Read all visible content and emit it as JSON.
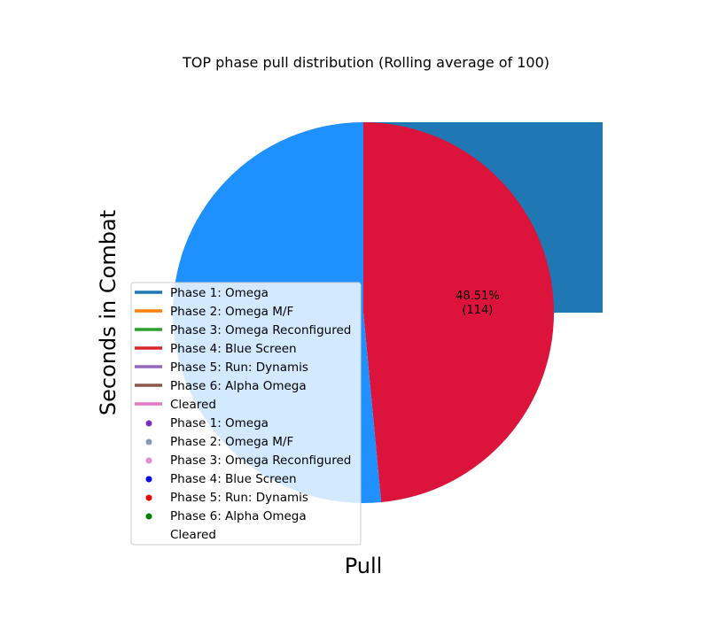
{
  "chart_data": {
    "type": "pie",
    "title": "TOP phase pull distribution (Rolling average of 100)",
    "xlabel": "Pull",
    "ylabel": "Seconds in Combat",
    "slices": [
      {
        "name": "",
        "value": 48.51,
        "count": 114,
        "color": "#dc143c",
        "pct_label": "48.51%",
        "count_label": "(114)"
      },
      {
        "name": "",
        "value": 51.49,
        "color": "#1e90ff"
      }
    ],
    "extra_bar": {
      "color": "#1f77b4"
    },
    "legend_placement": "center-left",
    "legend": {
      "lines": [
        {
          "label": "Phase 1: Omega",
          "color": "#1f77b4"
        },
        {
          "label": "Phase 2: Omega M/F",
          "color": "#ff7f0e"
        },
        {
          "label": "Phase 3: Omega Reconfigured",
          "color": "#2ca02c"
        },
        {
          "label": "Phase 4: Blue Screen",
          "color": "#d62728"
        },
        {
          "label": "Phase 5: Run: Dynamis",
          "color": "#9467bd"
        },
        {
          "label": "Phase 6: Alpha Omega",
          "color": "#8c564b"
        },
        {
          "label": "Cleared",
          "color": "#e377c2"
        }
      ],
      "markers": [
        {
          "label": "Phase 1: Omega",
          "color": "#7b2fbe"
        },
        {
          "label": "Phase 2: Omega M/F",
          "color": "#8c9bb5"
        },
        {
          "label": "Phase 3: Omega Reconfigured",
          "color": "#e68ad6"
        },
        {
          "label": "Phase 4: Blue Screen",
          "color": "#0000ee"
        },
        {
          "label": "Phase 5: Run: Dynamis",
          "color": "#ee0000"
        },
        {
          "label": "Phase 6: Alpha Omega",
          "color": "#008000"
        },
        {
          "label": "Cleared",
          "color": ""
        }
      ]
    }
  }
}
